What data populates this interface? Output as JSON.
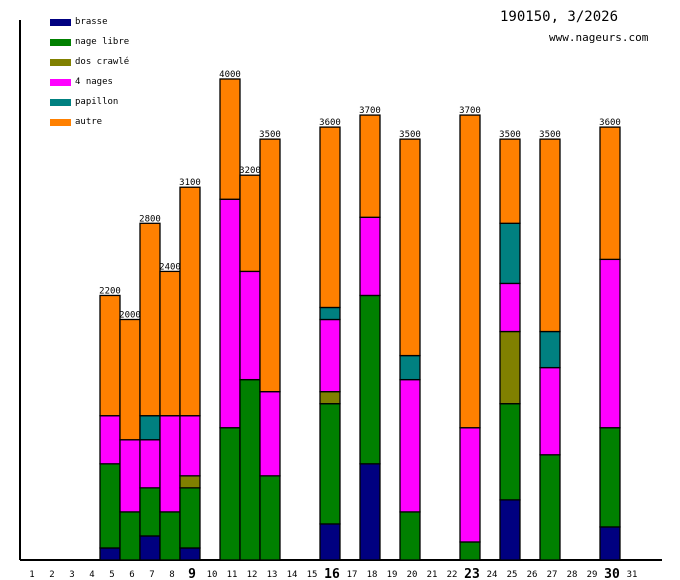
{
  "header": {
    "title": "190150, 3/2026",
    "site": "www.nageurs.com"
  },
  "chart_data": {
    "type": "bar",
    "stacked": true,
    "title": "190150, 3/2026",
    "xlabel": "",
    "ylabel": "",
    "ylim": [
      0,
      4000
    ],
    "legend_position": "top-left",
    "days": [
      1,
      2,
      3,
      4,
      5,
      6,
      7,
      8,
      9,
      10,
      11,
      12,
      13,
      14,
      15,
      16,
      17,
      18,
      19,
      20,
      21,
      22,
      23,
      24,
      25,
      26,
      27,
      28,
      29,
      30,
      31
    ],
    "bold_days": [
      9,
      16,
      23,
      30
    ],
    "series": [
      {
        "name": "brasse",
        "color": "#000080"
      },
      {
        "name": "nage libre",
        "color": "#008000"
      },
      {
        "name": "dos crawlé",
        "color": "#808000"
      },
      {
        "name": "4 nages",
        "color": "#ff00ff"
      },
      {
        "name": "papillon",
        "color": "#008080"
      },
      {
        "name": "autre",
        "color": "#ff8000"
      }
    ],
    "bars": [
      {
        "day": 5,
        "total": "2200",
        "values": [
          100,
          700,
          0,
          400,
          0,
          1000
        ]
      },
      {
        "day": 6,
        "total": "2000",
        "values": [
          0,
          400,
          0,
          600,
          0,
          1000
        ]
      },
      {
        "day": 7,
        "total": "2800",
        "values": [
          200,
          400,
          0,
          400,
          200,
          1600
        ]
      },
      {
        "day": 8,
        "total": "2400",
        "values": [
          0,
          400,
          0,
          800,
          0,
          1200
        ]
      },
      {
        "day": 9,
        "total": "3100",
        "values": [
          100,
          500,
          100,
          500,
          0,
          1900
        ]
      },
      {
        "day": 11,
        "total": "4000",
        "values": [
          0,
          1100,
          0,
          1900,
          0,
          1000
        ]
      },
      {
        "day": 12,
        "total": "3200",
        "values": [
          0,
          1500,
          0,
          900,
          0,
          800
        ]
      },
      {
        "day": 13,
        "total": "3500",
        "values": [
          0,
          700,
          0,
          700,
          0,
          2100
        ]
      },
      {
        "day": 16,
        "total": "3600",
        "values": [
          300,
          1000,
          100,
          600,
          100,
          1500
        ]
      },
      {
        "day": 18,
        "total": "3700",
        "values": [
          800,
          1400,
          0,
          650,
          0,
          850
        ]
      },
      {
        "day": 20,
        "total": "3500",
        "values": [
          0,
          400,
          0,
          1100,
          200,
          1800
        ]
      },
      {
        "day": 23,
        "total": "3700",
        "values": [
          0,
          150,
          0,
          950,
          0,
          2600
        ]
      },
      {
        "day": 25,
        "total": "3500",
        "values": [
          500,
          800,
          600,
          400,
          500,
          700
        ]
      },
      {
        "day": 27,
        "total": "3500",
        "values": [
          0,
          875,
          0,
          725,
          300,
          1600
        ]
      },
      {
        "day": 30,
        "total": "3600",
        "values": [
          275,
          825,
          0,
          1400,
          0,
          1100
        ]
      }
    ]
  }
}
